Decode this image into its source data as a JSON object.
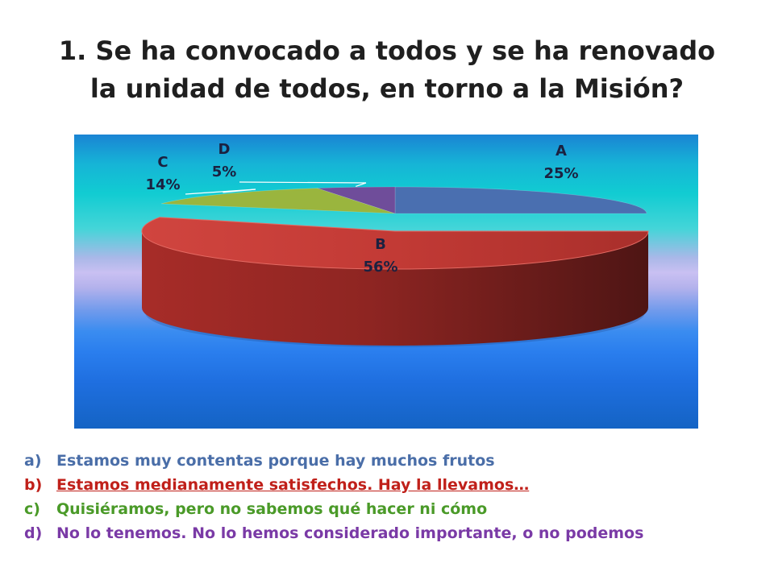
{
  "title_lines": [
    "1. Se ha convocado a todos y se ha renovado",
    "la unidad de todos, en torno a la Misión?"
  ],
  "chart_data": {
    "type": "pie",
    "is_3d": true,
    "slices": [
      {
        "label": "A",
        "value": 25,
        "display": "25%",
        "color": "#4a6fb0"
      },
      {
        "label": "B",
        "value": 56,
        "display": "56%",
        "color": "#c63a35"
      },
      {
        "label": "C",
        "value": 14,
        "display": "14%",
        "color": "#9ab53e"
      },
      {
        "label": "D",
        "value": 5,
        "display": "5%",
        "color": "#6f4d9a"
      }
    ]
  },
  "legend": [
    {
      "marker": "a)",
      "text": "Estamos muy contentas porque hay muchos frutos",
      "color": "#4a6ea8",
      "underline": false
    },
    {
      "marker": "b)",
      "text": "Estamos medianamente satisfechos. Hay la llevamos…",
      "color": "#c0201a",
      "underline": true
    },
    {
      "marker": "c)",
      "text": "Quisiéramos, pero no sabemos qué hacer ni cómo",
      "color": "#4a9a28",
      "underline": false
    },
    {
      "marker": "d)",
      "text": "No lo tenemos. No lo hemos considerado importante, o no podemos",
      "color": "#7a3aa6",
      "underline": false
    }
  ]
}
